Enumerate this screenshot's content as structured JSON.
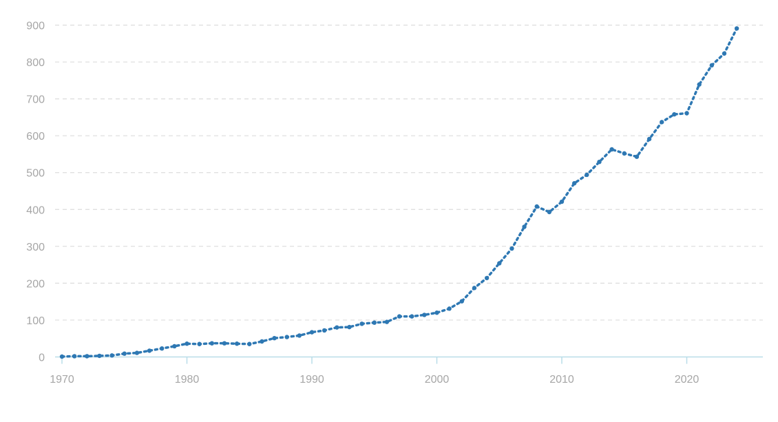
{
  "chart_data": {
    "type": "line",
    "title": "",
    "xlabel": "",
    "ylabel": "",
    "xlim": [
      1970,
      2026
    ],
    "ylim": [
      0,
      900
    ],
    "x_ticks": [
      1970,
      1980,
      1990,
      2000,
      2010,
      2020
    ],
    "y_ticks": [
      0,
      100,
      200,
      300,
      400,
      500,
      600,
      700,
      800,
      900
    ],
    "grid": "horizontal-dashed",
    "colors": {
      "series": "#2e78b3",
      "grid": "#dcdcdc",
      "axis": "#b9dde8",
      "tick_text": "#a6a6a6"
    },
    "series": [
      {
        "x": [
          1970,
          1971,
          1972,
          1973,
          1974,
          1975,
          1976,
          1977,
          1978,
          1979,
          1980,
          1981,
          1982,
          1983,
          1984,
          1985,
          1986,
          1987,
          1988,
          1989,
          1990,
          1991,
          1992,
          1993,
          1994,
          1995,
          1996,
          1997,
          1998,
          1999,
          2000,
          2001,
          2002,
          2003,
          2004,
          2005,
          2006,
          2007,
          2008,
          2009,
          2010,
          2011,
          2012,
          2013,
          2014,
          2015,
          2016,
          2017,
          2018,
          2019,
          2020,
          2021,
          2022,
          2023,
          2024
        ],
        "values": [
          1,
          2,
          2,
          3,
          4,
          9,
          11,
          17,
          23,
          29,
          36,
          35,
          37,
          37,
          36,
          35,
          42,
          51,
          54,
          58,
          67,
          72,
          80,
          81,
          90,
          93,
          95,
          110,
          110,
          114,
          120,
          131,
          151,
          187,
          214,
          254,
          294,
          353,
          408,
          393,
          421,
          471,
          494,
          529,
          563,
          552,
          543,
          591,
          637,
          658,
          661,
          739,
          791,
          823,
          891
        ]
      }
    ]
  }
}
